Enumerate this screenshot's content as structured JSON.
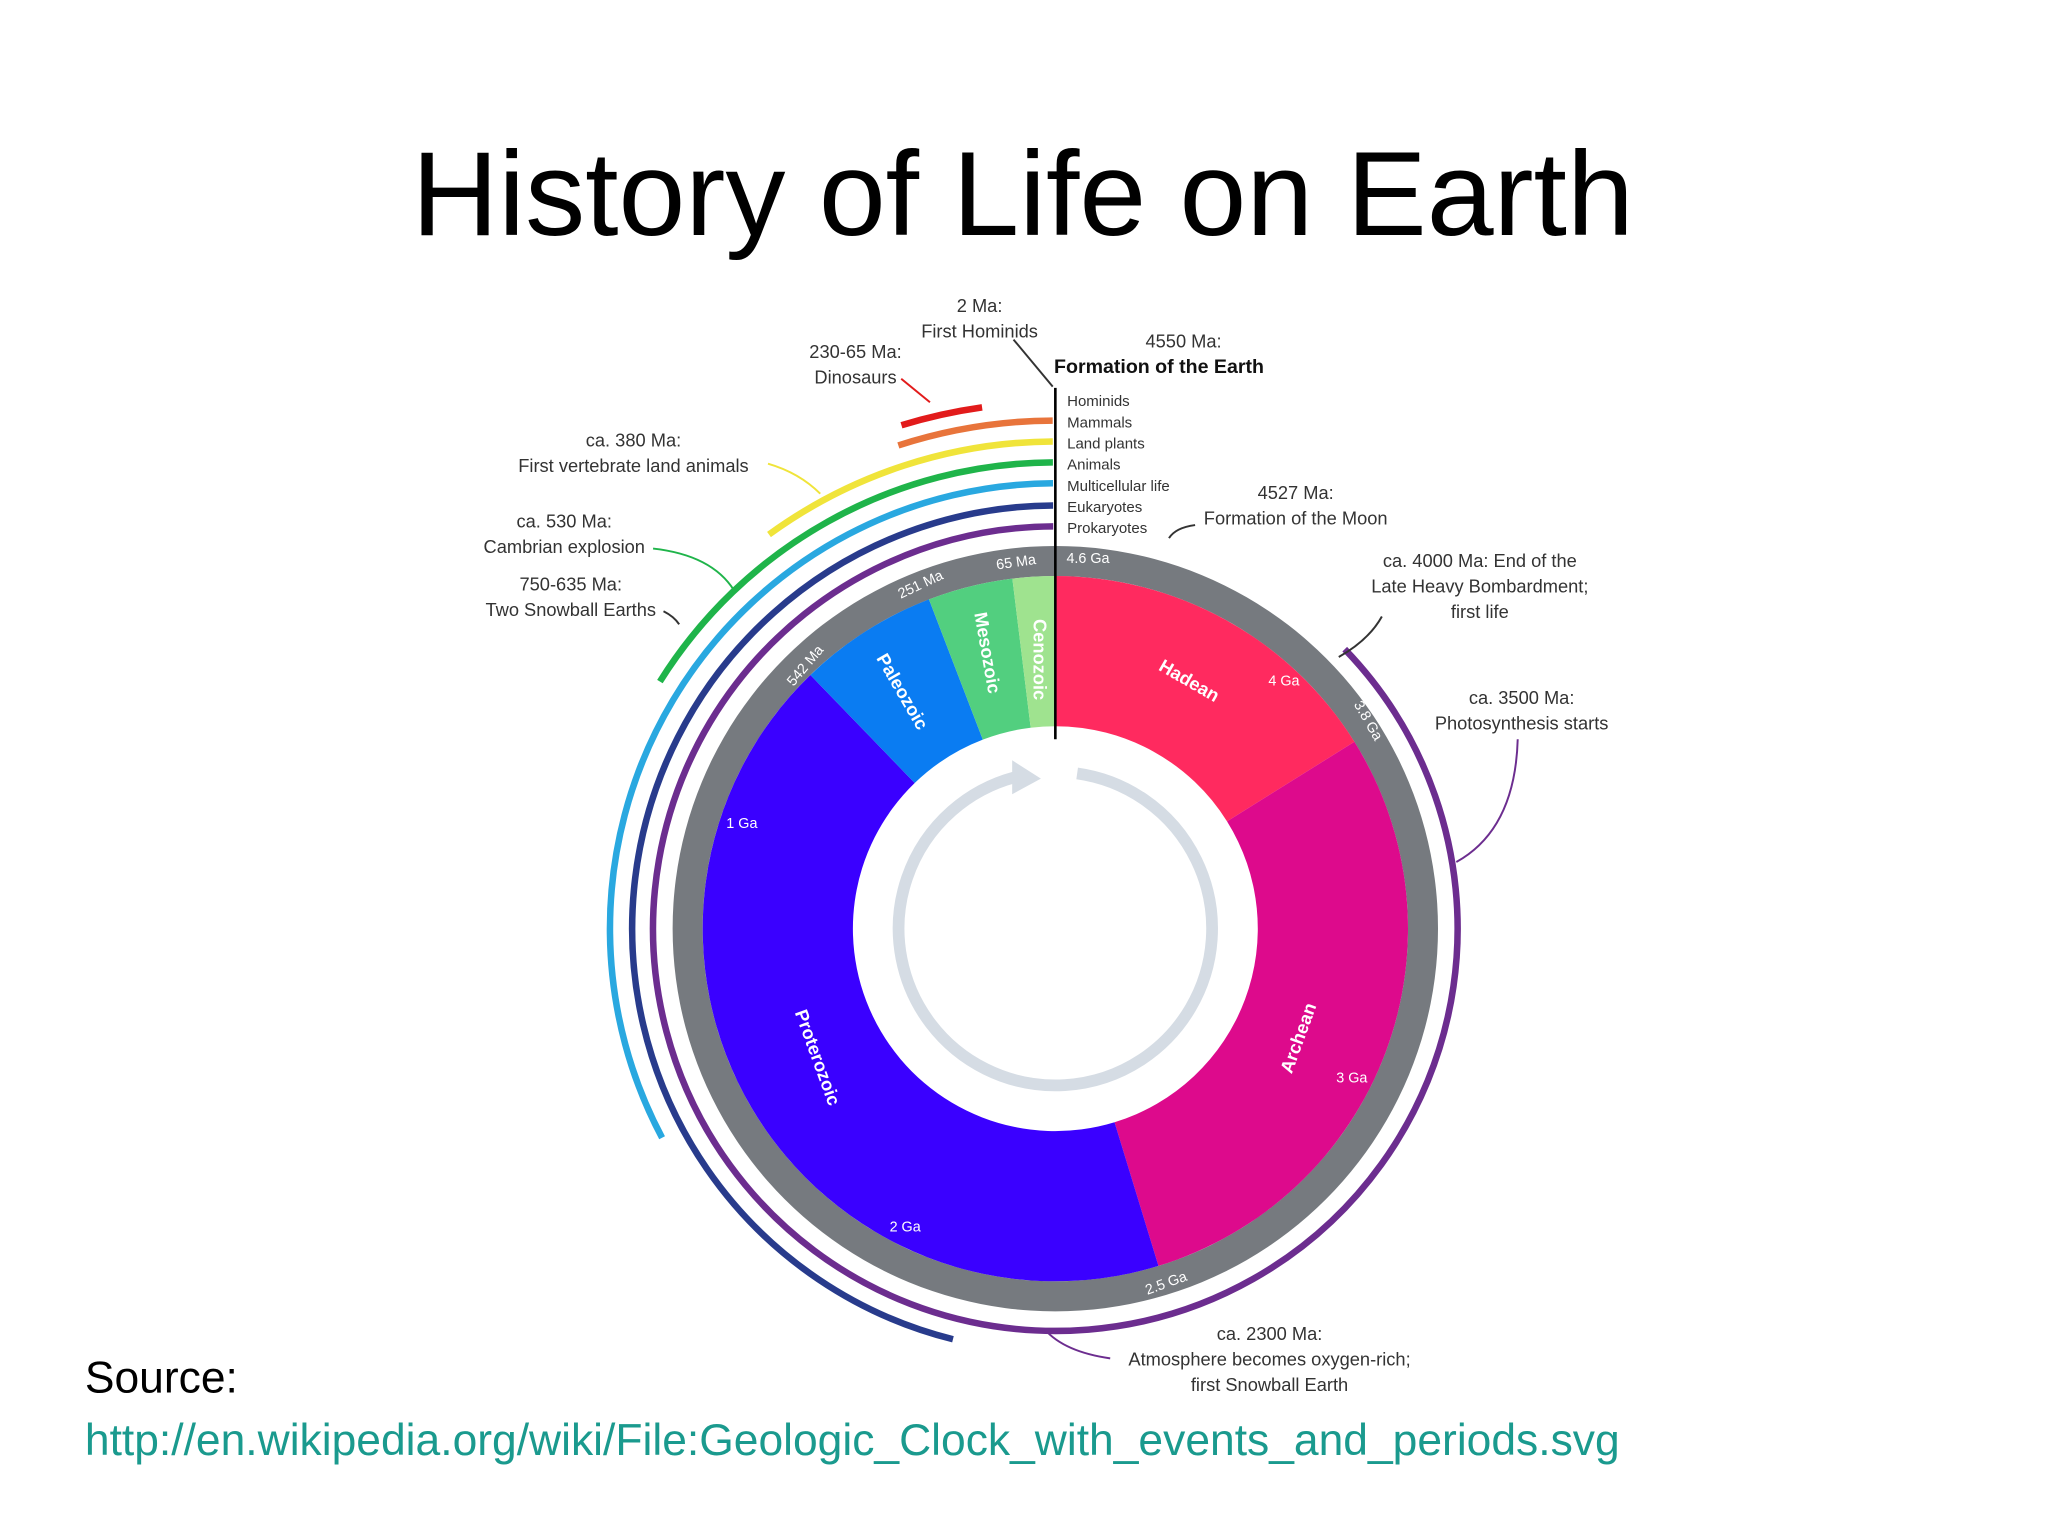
{
  "header": {
    "title": "History of Life on Earth"
  },
  "source": {
    "label": "Source:",
    "url": "http://en.wikipedia.org/wiki/File:Geologic_Clock_with_events_and_periods.svg"
  },
  "diagram": {
    "eons": [
      "Hadean",
      "Archean",
      "Proterozoic",
      "Paleozoic",
      "Mesozoic",
      "Cenozoic"
    ],
    "time_marks": [
      "4.6 Ga",
      "4 Ga",
      "3.8 Ga",
      "3 Ga",
      "2.5 Ga",
      "2 Ga",
      "1 Ga",
      "542 Ma",
      "251 Ma",
      "65 Ma"
    ],
    "legend": [
      "Hominids",
      "Mammals",
      "Land plants",
      "Animals",
      "Multicellular life",
      "Eukaryotes",
      "Prokaryotes"
    ],
    "annotations": [
      {
        "lines": [
          "2 Ma:",
          "First Hominids"
        ]
      },
      {
        "lines": [
          "230-65 Ma:",
          "Dinosaurs"
        ]
      },
      {
        "lines": [
          "4550 Ma:",
          "Formation of the Earth"
        ]
      },
      {
        "lines": [
          "ca. 380 Ma:",
          "First vertebrate land animals"
        ]
      },
      {
        "lines": [
          "ca. 530 Ma:",
          "Cambrian explosion"
        ]
      },
      {
        "lines": [
          "750-635 Ma:",
          "Two Snowball Earths"
        ]
      },
      {
        "lines": [
          "4527 Ma:",
          "Formation of the Moon"
        ]
      },
      {
        "lines": [
          "ca. 4000 Ma: End of the",
          "Late Heavy Bombardment;",
          "first life"
        ]
      },
      {
        "lines": [
          "ca. 3500 Ma:",
          "Photosynthesis starts"
        ]
      },
      {
        "lines": [
          "ca. 2300 Ma:",
          "Atmosphere becomes oxygen-rich;",
          "first Snowball Earth"
        ]
      }
    ]
  }
}
